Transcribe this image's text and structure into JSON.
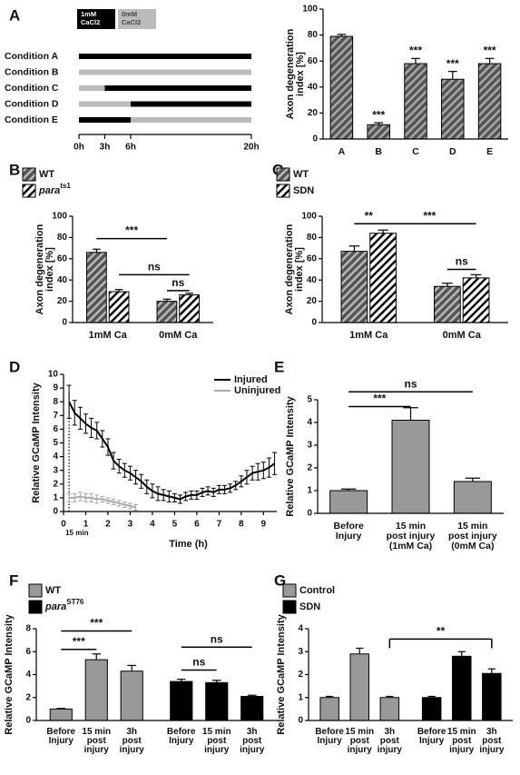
{
  "chart_data": [
    {
      "type": "timeline",
      "panel": "A",
      "xlim": [
        0,
        20
      ],
      "legend": [
        {
          "label": "1mM\nCaCl2",
          "color": "#000000"
        },
        {
          "label": "0mM\nCaCl2",
          "color": "#bbbbbb"
        }
      ],
      "rows": [
        {
          "name": "Condition A",
          "segments": [
            {
              "start": 0,
              "end": 20,
              "color": "#000000"
            }
          ]
        },
        {
          "name": "Condition B",
          "segments": [
            {
              "start": 0,
              "end": 20,
              "color": "#bbbbbb"
            }
          ]
        },
        {
          "name": "Condition C",
          "segments": [
            {
              "start": 0,
              "end": 3,
              "color": "#bbbbbb"
            },
            {
              "start": 3,
              "end": 20,
              "color": "#000000"
            }
          ]
        },
        {
          "name": "Condition D",
          "segments": [
            {
              "start": 0,
              "end": 6,
              "color": "#bbbbbb"
            },
            {
              "start": 6,
              "end": 20,
              "color": "#000000"
            }
          ]
        },
        {
          "name": "Condition E",
          "segments": [
            {
              "start": 0,
              "end": 6,
              "color": "#000000"
            },
            {
              "start": 6,
              "end": 20,
              "color": "#bbbbbb"
            }
          ]
        }
      ],
      "xticks": [
        {
          "value": 0,
          "label": "0h"
        },
        {
          "value": 3,
          "label": "3h"
        },
        {
          "value": 6,
          "label": "6h"
        },
        {
          "value": 20,
          "label": "20h"
        }
      ]
    },
    {
      "type": "bar",
      "ylabel": "Axon degeneration\nindex [%]",
      "categories": [
        "A",
        "B",
        "C",
        "D",
        "E"
      ],
      "values": [
        79,
        11,
        58,
        46,
        58
      ],
      "errors": [
        1.5,
        1.5,
        4,
        6,
        4
      ],
      "color": "#555555",
      "hatch": true,
      "hatch_color": "#aaaaaa",
      "ylim": [
        0,
        100
      ],
      "yticks": [
        0,
        20,
        40,
        60,
        80,
        100
      ],
      "annotations": [
        {
          "text": "***",
          "bar": 1
        },
        {
          "text": "***",
          "bar": 2
        },
        {
          "text": "***",
          "bar": 3
        },
        {
          "text": "***",
          "bar": 4
        }
      ]
    },
    {
      "type": "bar",
      "panel": "B",
      "ylabel": "Axon degeneration\nindex [%]",
      "grouping": "by_category",
      "categories": [
        "1mM Ca",
        "0mM Ca"
      ],
      "series": [
        {
          "name": "WT",
          "color": "#555555",
          "hatch": true,
          "hatch_color": "#bbbbbb",
          "values": [
            66,
            20
          ],
          "errors": [
            3,
            2
          ]
        },
        {
          "name": "para",
          "superscript": "ts1",
          "color": "#ffffff",
          "hatch": true,
          "hatch_color": "#000000",
          "values": [
            29,
            26
          ],
          "errors": [
            2,
            1.5
          ]
        }
      ],
      "ylim": [
        0,
        100
      ],
      "yticks": [
        0,
        20,
        40,
        60,
        80,
        100
      ],
      "annotations": [
        {
          "text": "***",
          "from": 0,
          "to": 2,
          "y": 79
        },
        {
          "text": "ns",
          "from": 1,
          "to": 3,
          "y": 45
        },
        {
          "text": "ns",
          "from": 2,
          "to": 3,
          "y": 30
        }
      ]
    },
    {
      "type": "bar",
      "panel": "C",
      "ylabel": "Axon degeneration\nindex [%]",
      "grouping": "by_category",
      "categories": [
        "1mM Ca",
        "0mM Ca"
      ],
      "series": [
        {
          "name": "WT",
          "color": "#555555",
          "hatch": true,
          "hatch_color": "#bbbbbb",
          "values": [
            67,
            34
          ],
          "errors": [
            5,
            3
          ]
        },
        {
          "name": "SDN",
          "color": "#ffffff",
          "hatch": true,
          "hatch_color": "#000000",
          "values": [
            84,
            42
          ],
          "errors": [
            3,
            3
          ]
        }
      ],
      "ylim": [
        0,
        100
      ],
      "yticks": [
        0,
        20,
        40,
        60,
        80,
        100
      ],
      "annotations": [
        {
          "text": "**",
          "from": 0,
          "to": 1,
          "y": 93
        },
        {
          "text": "***",
          "from": 1,
          "to": 3,
          "y": 93
        },
        {
          "text": "ns",
          "from": 2,
          "to": 3,
          "y": 50
        }
      ]
    },
    {
      "type": "line",
      "panel": "D",
      "ylabel": "Relative GCaMP Intensity",
      "xlabel": "Time (h)",
      "xlim": [
        0,
        9.6
      ],
      "xticks": [
        0,
        1,
        2,
        3,
        4,
        5,
        6,
        7,
        8,
        9
      ],
      "ylim": [
        0,
        10
      ],
      "yticks": [
        0,
        1,
        2,
        3,
        4,
        5,
        6,
        7,
        8,
        9,
        10
      ],
      "marker": {
        "text": "15 min",
        "x": 0.25
      },
      "series": [
        {
          "name": "Injured",
          "color": "#000000",
          "x": [
            0.25,
            0.5,
            0.75,
            1,
            1.25,
            1.5,
            1.75,
            2,
            2.25,
            2.5,
            2.75,
            3,
            3.25,
            3.5,
            3.75,
            4,
            4.25,
            4.5,
            4.75,
            5,
            5.25,
            5.5,
            5.75,
            6,
            6.25,
            6.5,
            6.75,
            7,
            7.25,
            7.5,
            7.75,
            8,
            8.25,
            8.5,
            8.75,
            9,
            9.25,
            9.5
          ],
          "values": [
            8.0,
            7.2,
            6.8,
            6.4,
            6.1,
            5.9,
            5.3,
            4.7,
            3.7,
            3.3,
            3.0,
            2.8,
            2.5,
            2.2,
            1.8,
            1.5,
            1.3,
            1.2,
            1.1,
            1.0,
            0.9,
            1.1,
            1.2,
            1.2,
            1.4,
            1.5,
            1.4,
            1.6,
            1.6,
            1.7,
            1.9,
            2.2,
            2.5,
            2.8,
            2.9,
            3.0,
            3.2,
            3.5
          ],
          "errors": [
            1.2,
            0.9,
            0.8,
            0.7,
            0.7,
            0.6,
            0.6,
            0.6,
            0.6,
            0.5,
            0.5,
            0.5,
            0.5,
            0.5,
            0.5,
            0.5,
            0.5,
            0.4,
            0.4,
            0.3,
            0.3,
            0.3,
            0.3,
            0.3,
            0.3,
            0.3,
            0.3,
            0.3,
            0.3,
            0.3,
            0.3,
            0.4,
            0.5,
            0.5,
            0.6,
            0.6,
            0.7,
            0.8
          ]
        },
        {
          "name": "Uninjured",
          "color": "#aaaaaa",
          "x": [
            0.25,
            0.5,
            0.75,
            1,
            1.25,
            1.5,
            1.75,
            2,
            2.25,
            2.5,
            2.75,
            3,
            3.25
          ],
          "values": [
            1.0,
            1.0,
            1.1,
            1.0,
            1.0,
            0.9,
            0.9,
            0.8,
            0.7,
            0.6,
            0.5,
            0.4,
            0.3
          ],
          "errors": [
            0.3,
            0.3,
            0.3,
            0.3,
            0.3,
            0.3,
            0.2,
            0.2,
            0.2,
            0.2,
            0.2,
            0.2,
            0.2
          ]
        }
      ]
    },
    {
      "type": "bar",
      "panel": "E",
      "ylabel": "Relative GCaMP Intensity",
      "categories": [
        "Before\nInjury",
        "15 min\npost injury\n(1mM Ca)",
        "15 min\npost injury\n(0mM Ca)"
      ],
      "values": [
        1.0,
        4.1,
        1.4
      ],
      "errors": [
        0.07,
        0.55,
        0.15
      ],
      "color": "#999999",
      "ylim": [
        0,
        5
      ],
      "yticks": [
        0,
        1,
        2,
        3,
        4,
        5
      ],
      "annotations": [
        {
          "text": "***",
          "from": 0,
          "to": 1,
          "y": 4.7
        },
        {
          "text": "ns",
          "from": 0,
          "to": 2,
          "y": 5.35
        }
      ]
    },
    {
      "type": "bar",
      "panel": "F",
      "ylabel": "Relative GCaMP Intensity",
      "grouping": "by_series",
      "categories": [
        "Before\nInjury",
        "15 min\npost\ninjury",
        "3h\npost\ninjury"
      ],
      "series": [
        {
          "name": "WT",
          "color": "#999999",
          "values": [
            1.0,
            5.3,
            4.3
          ],
          "errors": [
            0.05,
            0.5,
            0.5
          ]
        },
        {
          "name": "para",
          "superscript": "ST76",
          "color": "#000000",
          "values": [
            3.4,
            3.3,
            2.1
          ],
          "errors": [
            0.2,
            0.2,
            0.1
          ]
        }
      ],
      "ylim": [
        0,
        8
      ],
      "yticks": [
        0,
        2,
        4,
        6,
        8
      ],
      "annotations": [
        {
          "text": "***",
          "from": 0,
          "to": 1,
          "y": 6.2
        },
        {
          "text": "***",
          "from": 0,
          "to": 2,
          "y": 7.8
        },
        {
          "text": "ns",
          "from": 3,
          "to": 4,
          "y": 4.4
        },
        {
          "text": "ns",
          "from": 3,
          "to": 5,
          "y": 6.4
        }
      ]
    },
    {
      "type": "bar",
      "panel": "G",
      "ylabel": "Relative GCaMP Intensity",
      "grouping": "by_series",
      "bracket_ends": true,
      "categories": [
        "Before\nInjury",
        "15 min\npost\ninjury",
        "3h\npost\ninjury"
      ],
      "series": [
        {
          "name": "Control",
          "color": "#999999",
          "values": [
            1.0,
            2.9,
            1.0
          ],
          "errors": [
            0.05,
            0.25,
            0.05
          ]
        },
        {
          "name": "SDN",
          "color": "#000000",
          "values": [
            1.0,
            2.8,
            2.05
          ],
          "errors": [
            0.05,
            0.2,
            0.2
          ]
        }
      ],
      "ylim": [
        0,
        4
      ],
      "yticks": [
        0,
        1,
        2,
        3,
        4
      ],
      "annotations": [
        {
          "text": "**",
          "from": 2,
          "to": 5,
          "y": 3.55
        }
      ]
    }
  ]
}
